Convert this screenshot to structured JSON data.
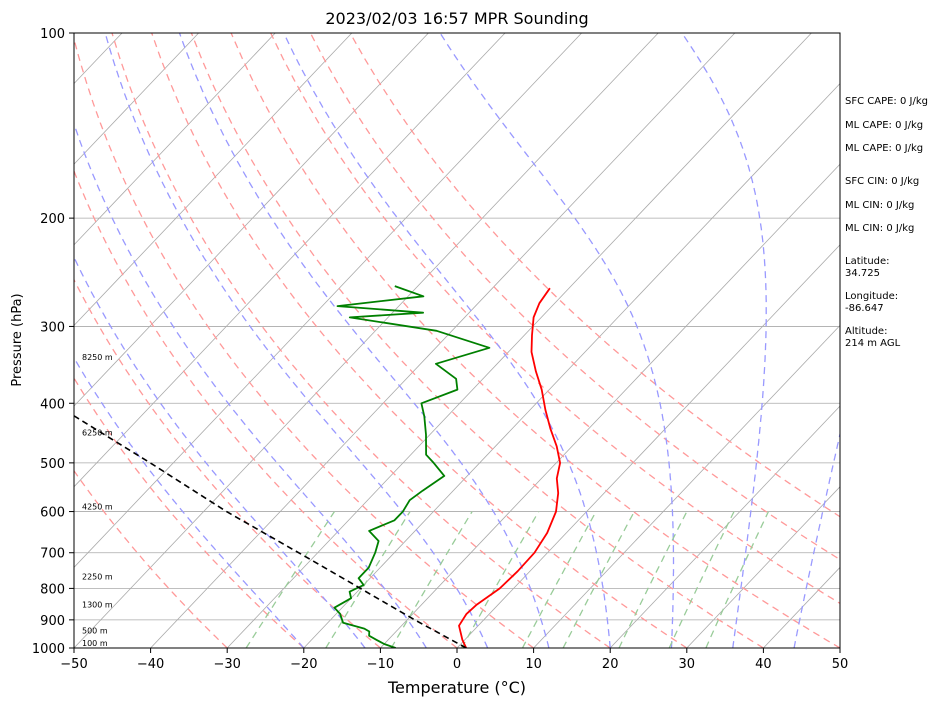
{
  "chart_data": {
    "type": "line",
    "title": "2023/02/03 16:57 MPR Sounding",
    "xlabel": "Temperature (°C)",
    "ylabel": "Pressure (hPa)",
    "xlim": [
      -50,
      50
    ],
    "ylim": [
      1000,
      100
    ],
    "yscale": "log",
    "x_ticks": [
      "−50",
      "−40",
      "−30",
      "−20",
      "−10",
      "0",
      "10",
      "20",
      "30",
      "40",
      "50"
    ],
    "y_ticks": [
      {
        "p": 100,
        "label": "100"
      },
      {
        "p": 200,
        "label": "200"
      },
      {
        "p": 300,
        "label": "300"
      },
      {
        "p": 400,
        "label": "400"
      },
      {
        "p": 500,
        "label": "500"
      },
      {
        "p": 600,
        "label": "600"
      },
      {
        "p": 700,
        "label": "700"
      },
      {
        "p": 800,
        "label": "800"
      },
      {
        "p": 900,
        "label": "900"
      },
      {
        "p": 1000,
        "label": "1000"
      }
    ],
    "grid": true,
    "skew": true,
    "colors": {
      "temperature": "#ff0000",
      "dewpoint": "#008000",
      "parcel": "#000000",
      "dry_adiabats": "#ff9999",
      "moist_adiabats": "#9999ff",
      "mixing_ratio": "#99cc99",
      "isotherms": "#aaaaaa"
    },
    "series": [
      {
        "key": "temperature",
        "points": [
          [
            1.2,
            1000
          ],
          [
            -0.3,
            970
          ],
          [
            -2.5,
            920
          ],
          [
            -3.0,
            880
          ],
          [
            -2.8,
            850
          ],
          [
            -1.8,
            800
          ],
          [
            -1.6,
            750
          ],
          [
            -1.7,
            700
          ],
          [
            -2.5,
            650
          ],
          [
            -4.0,
            600
          ],
          [
            -6.0,
            560
          ],
          [
            -8.0,
            530
          ],
          [
            -9.5,
            500
          ],
          [
            -12.0,
            470
          ],
          [
            -15.0,
            440
          ],
          [
            -18.0,
            410
          ],
          [
            -21.0,
            380
          ],
          [
            -24.0,
            355
          ],
          [
            -27.0,
            330
          ],
          [
            -29.0,
            310
          ],
          [
            -31.0,
            290
          ],
          [
            -32.0,
            275
          ],
          [
            -32.5,
            260
          ]
        ]
      },
      {
        "key": "dewpoint",
        "points": [
          [
            -8.0,
            1000
          ],
          [
            -10.0,
            985
          ],
          [
            -11.5,
            970
          ],
          [
            -13.0,
            955
          ],
          [
            -13.5,
            940
          ],
          [
            -14.5,
            930
          ],
          [
            -18.0,
            910
          ],
          [
            -19.5,
            880
          ],
          [
            -21.0,
            860
          ],
          [
            -20.0,
            830
          ],
          [
            -21.0,
            810
          ],
          [
            -20.0,
            790
          ],
          [
            -21.5,
            770
          ],
          [
            -21.5,
            740
          ],
          [
            -22.5,
            700
          ],
          [
            -23.5,
            670
          ],
          [
            -26.0,
            645
          ],
          [
            -24.0,
            620
          ],
          [
            -24.0,
            600
          ],
          [
            -24.5,
            575
          ],
          [
            -24.0,
            555
          ],
          [
            -23.0,
            525
          ],
          [
            -26.0,
            500
          ],
          [
            -28.0,
            485
          ],
          [
            -30.5,
            450
          ],
          [
            -33.0,
            420
          ],
          [
            -35.0,
            400
          ],
          [
            -32.0,
            380
          ],
          [
            -33.5,
            365
          ],
          [
            -38.0,
            345
          ],
          [
            -33.0,
            325
          ],
          [
            -42.0,
            305
          ],
          [
            -55.0,
            290
          ],
          [
            -46.0,
            285
          ],
          [
            -58.0,
            278
          ],
          [
            -48.0,
            268
          ],
          [
            -53.0,
            258
          ]
        ]
      },
      {
        "key": "parcel",
        "points": [
          [
            1.2,
            1000
          ],
          [
            -9.0,
            900
          ],
          [
            -20.0,
            800
          ],
          [
            -32.5,
            700
          ],
          [
            -47.0,
            600
          ],
          [
            -63.0,
            500
          ],
          [
            -83.0,
            400
          ],
          [
            -106.0,
            300
          ]
        ]
      }
    ],
    "height_labels": [
      {
        "p": 1000,
        "label": "100 m"
      },
      {
        "p": 955,
        "label": "500 m"
      },
      {
        "p": 865,
        "label": "1300 m"
      },
      {
        "p": 780,
        "label": "2250 m"
      },
      {
        "p": 600,
        "label": "4250 m"
      },
      {
        "p": 455,
        "label": "6250 m"
      },
      {
        "p": 343,
        "label": "8250 m"
      }
    ],
    "annotations": [
      "SFC CAPE: 0 J/kg",
      "ML CAPE: 0 J/kg",
      "ML CAPE: 0 J/kg",
      "SFC CIN: 0 J/kg",
      "ML CIN: 0 J/kg",
      "ML CIN: 0 J/kg",
      "Latitude:",
      "34.725",
      "Longitude:",
      "-86.647",
      "Altitude:",
      "214 m AGL"
    ]
  }
}
